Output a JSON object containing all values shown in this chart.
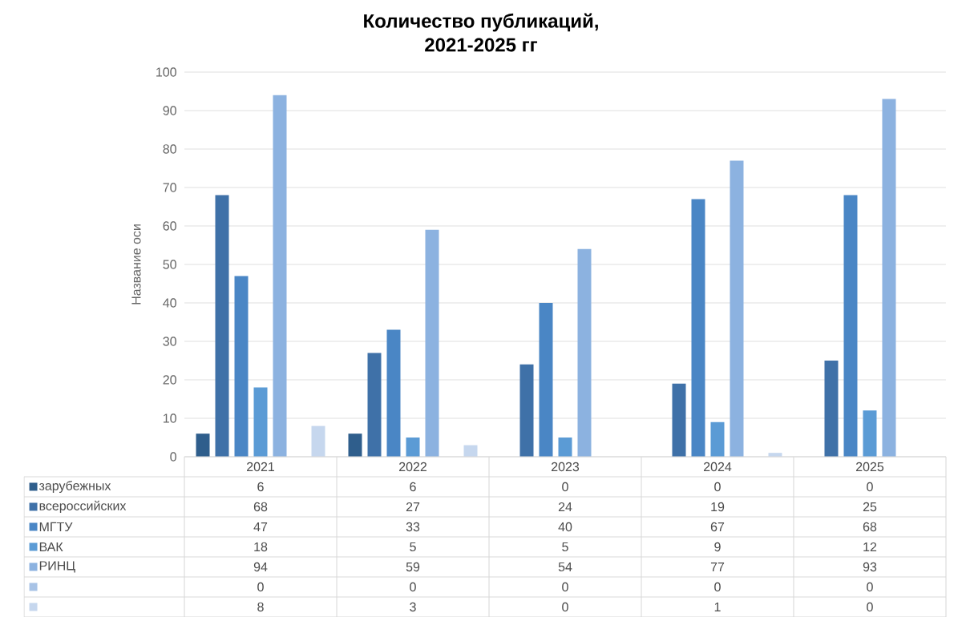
{
  "chart_data": {
    "type": "bar",
    "title": "Количество публикаций,",
    "subtitle": "2021-2025 гг",
    "ylabel": "Название оси",
    "categories": [
      "2021",
      "2022",
      "2023",
      "2024",
      "2025"
    ],
    "series": [
      {
        "name": "зарубежных",
        "color": "#2f5e8c",
        "values": [
          6,
          6,
          0,
          0,
          0
        ]
      },
      {
        "name": "всероссийских",
        "color": "#3f71a8",
        "values": [
          68,
          27,
          24,
          19,
          25
        ]
      },
      {
        "name": "МГТУ",
        "color": "#4a86c5",
        "values": [
          47,
          33,
          40,
          67,
          68
        ]
      },
      {
        "name": "ВАК",
        "color": "#5b9bd5",
        "values": [
          18,
          5,
          5,
          9,
          12
        ]
      },
      {
        "name": "РИНЦ",
        "color": "#8cb2e0",
        "values": [
          94,
          59,
          54,
          77,
          93
        ]
      },
      {
        "color": "#a8c3e6",
        "values": [
          0,
          0,
          0,
          0,
          0
        ]
      },
      {
        "color": "#c6d7ee",
        "values": [
          8,
          3,
          0,
          1,
          0
        ]
      }
    ],
    "ylim": [
      0,
      100
    ],
    "yticks": [
      0,
      10,
      20,
      30,
      40,
      50,
      60,
      70,
      80,
      90,
      100
    ],
    "grid": "y",
    "legend": "bottom",
    "data_labels": true
  }
}
